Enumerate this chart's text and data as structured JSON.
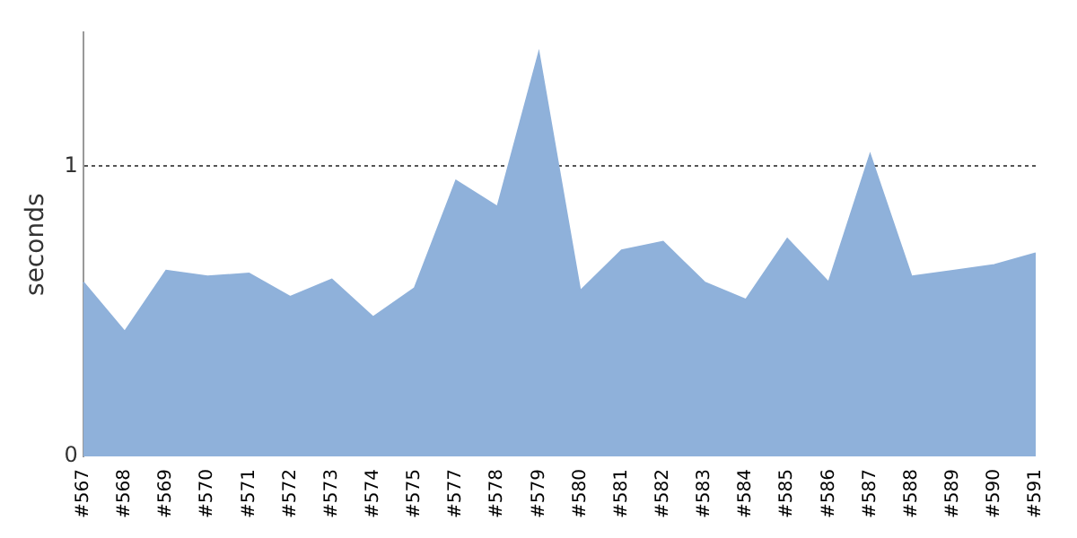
{
  "chart_data": {
    "type": "area",
    "ylabel": "seconds",
    "categories": [
      "#567",
      "#568",
      "#569",
      "#570",
      "#571",
      "#572",
      "#573",
      "#574",
      "#575",
      "#577",
      "#578",
      "#579",
      "#580",
      "#581",
      "#582",
      "#583",
      "#584",
      "#585",
      "#586",
      "#587",
      "#588",
      "#589",
      "#590",
      "#591"
    ],
    "series": [
      {
        "color": "#8fb1da",
        "values": [
          0.6,
          0.43,
          0.64,
          0.62,
          0.63,
          0.55,
          0.61,
          0.48,
          0.58,
          0.95,
          0.86,
          1.39,
          0.57,
          0.71,
          0.74,
          0.6,
          0.54,
          0.75,
          0.6,
          1.04,
          0.62,
          0.64,
          0.66,
          0.7
        ]
      }
    ],
    "ylim": [
      0,
      1.46
    ],
    "yticks": [
      0,
      1
    ],
    "grid": "y",
    "line_style": "dotted",
    "legend": false
  }
}
